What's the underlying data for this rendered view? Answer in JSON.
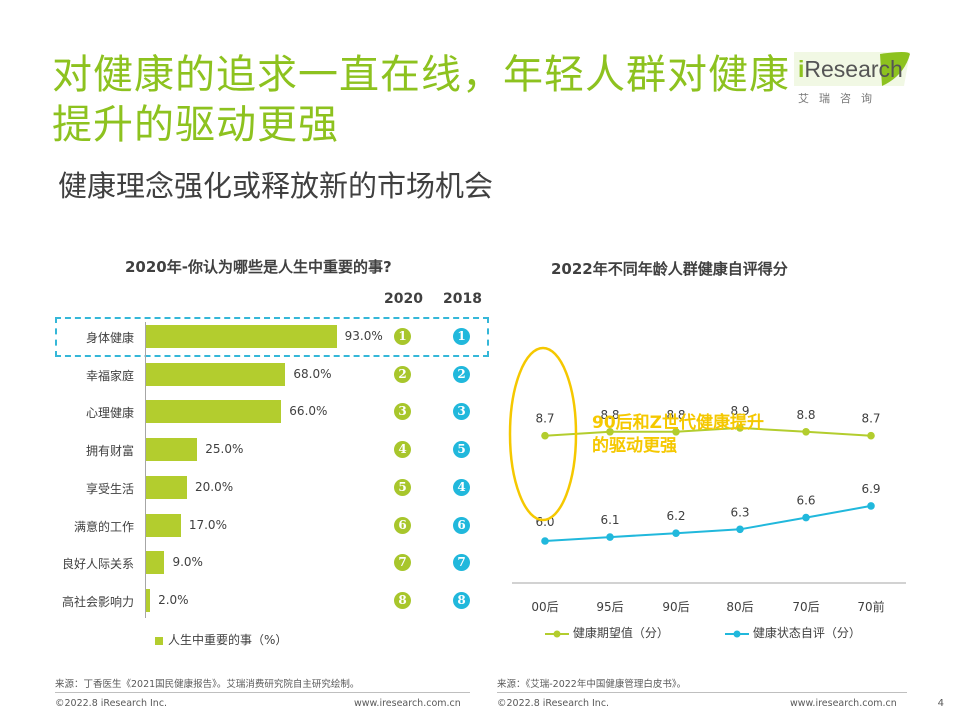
{
  "header": {
    "title": "对健康的追求一直在线，年轻人群对健康提升的驱动更强",
    "subtitle": "健康理念强化或释放新的市场机会",
    "logo_brand_i": "i",
    "logo_brand_rest": "Research",
    "logo_chinese": "艾瑞咨询"
  },
  "chart_data": [
    {
      "type": "bar",
      "orientation": "horizontal",
      "title": "2020年-你认为哪些是人生中重要的事?",
      "categories": [
        "身体健康",
        "幸福家庭",
        "心理健康",
        "拥有财富",
        "享受生活",
        "满意的工作",
        "良好人际关系",
        "高社会影响力"
      ],
      "values": [
        93.0,
        68.0,
        66.0,
        25.0,
        20.0,
        17.0,
        9.0,
        2.0
      ],
      "value_labels": [
        "93.0%",
        "68.0%",
        "66.0%",
        "25.0%",
        "20.0%",
        "17.0%",
        "9.0%",
        "2.0%"
      ],
      "xlim": [
        0,
        100
      ],
      "legend": "人生中重要的事（%）",
      "rank_columns": [
        "2020",
        "2018"
      ],
      "ranks_2020": [
        "1",
        "2",
        "3",
        "4",
        "5",
        "6",
        "7",
        "8"
      ],
      "ranks_2018": [
        "1",
        "2",
        "3",
        "5",
        "4",
        "6",
        "7",
        "8"
      ],
      "rank_colors": {
        "2020": "#a8c62c",
        "2018": "#21b8dc"
      },
      "bar_color": "#b3cd2e",
      "highlight_color": "#35b7d8"
    },
    {
      "type": "line",
      "title": "2022年不同年龄人群健康自评得分",
      "categories": [
        "00后",
        "95后",
        "90后",
        "80后",
        "70后",
        "70前"
      ],
      "ylim": [
        5,
        10
      ],
      "series": [
        {
          "name": "健康期望值（分）",
          "values": [
            8.7,
            8.8,
            8.8,
            8.9,
            8.8,
            8.7
          ],
          "labels": [
            "8.7",
            "8.8",
            "8.8",
            "8.9",
            "8.8",
            "8.7"
          ],
          "color": "#b3cd2e"
        },
        {
          "name": "健康状态自评（分）",
          "values": [
            6.0,
            6.1,
            6.2,
            6.3,
            6.6,
            6.9
          ],
          "labels": [
            "6.0",
            "6.1",
            "6.2",
            "6.3",
            "6.6",
            "6.9"
          ],
          "color": "#21b8dc"
        }
      ],
      "annotation_line1": "90后和Z世代健康提升",
      "annotation_line2": "的驱动更强",
      "annotation_color": "#f5c800"
    }
  ],
  "footer": {
    "source_left": "来源：丁香医生《2021国民健康报告》。艾瑞消费研究院自主研究绘制。",
    "source_right": "来源：《艾瑞-2022年中国健康管理白皮书》。",
    "copyright_left": "©2022.8 iResearch Inc.",
    "website_left": "www.iresearch.com.cn",
    "copyright_right": "©2022.8 iResearch Inc.",
    "website_right": "www.iresearch.com.cn",
    "page_number": "4"
  }
}
